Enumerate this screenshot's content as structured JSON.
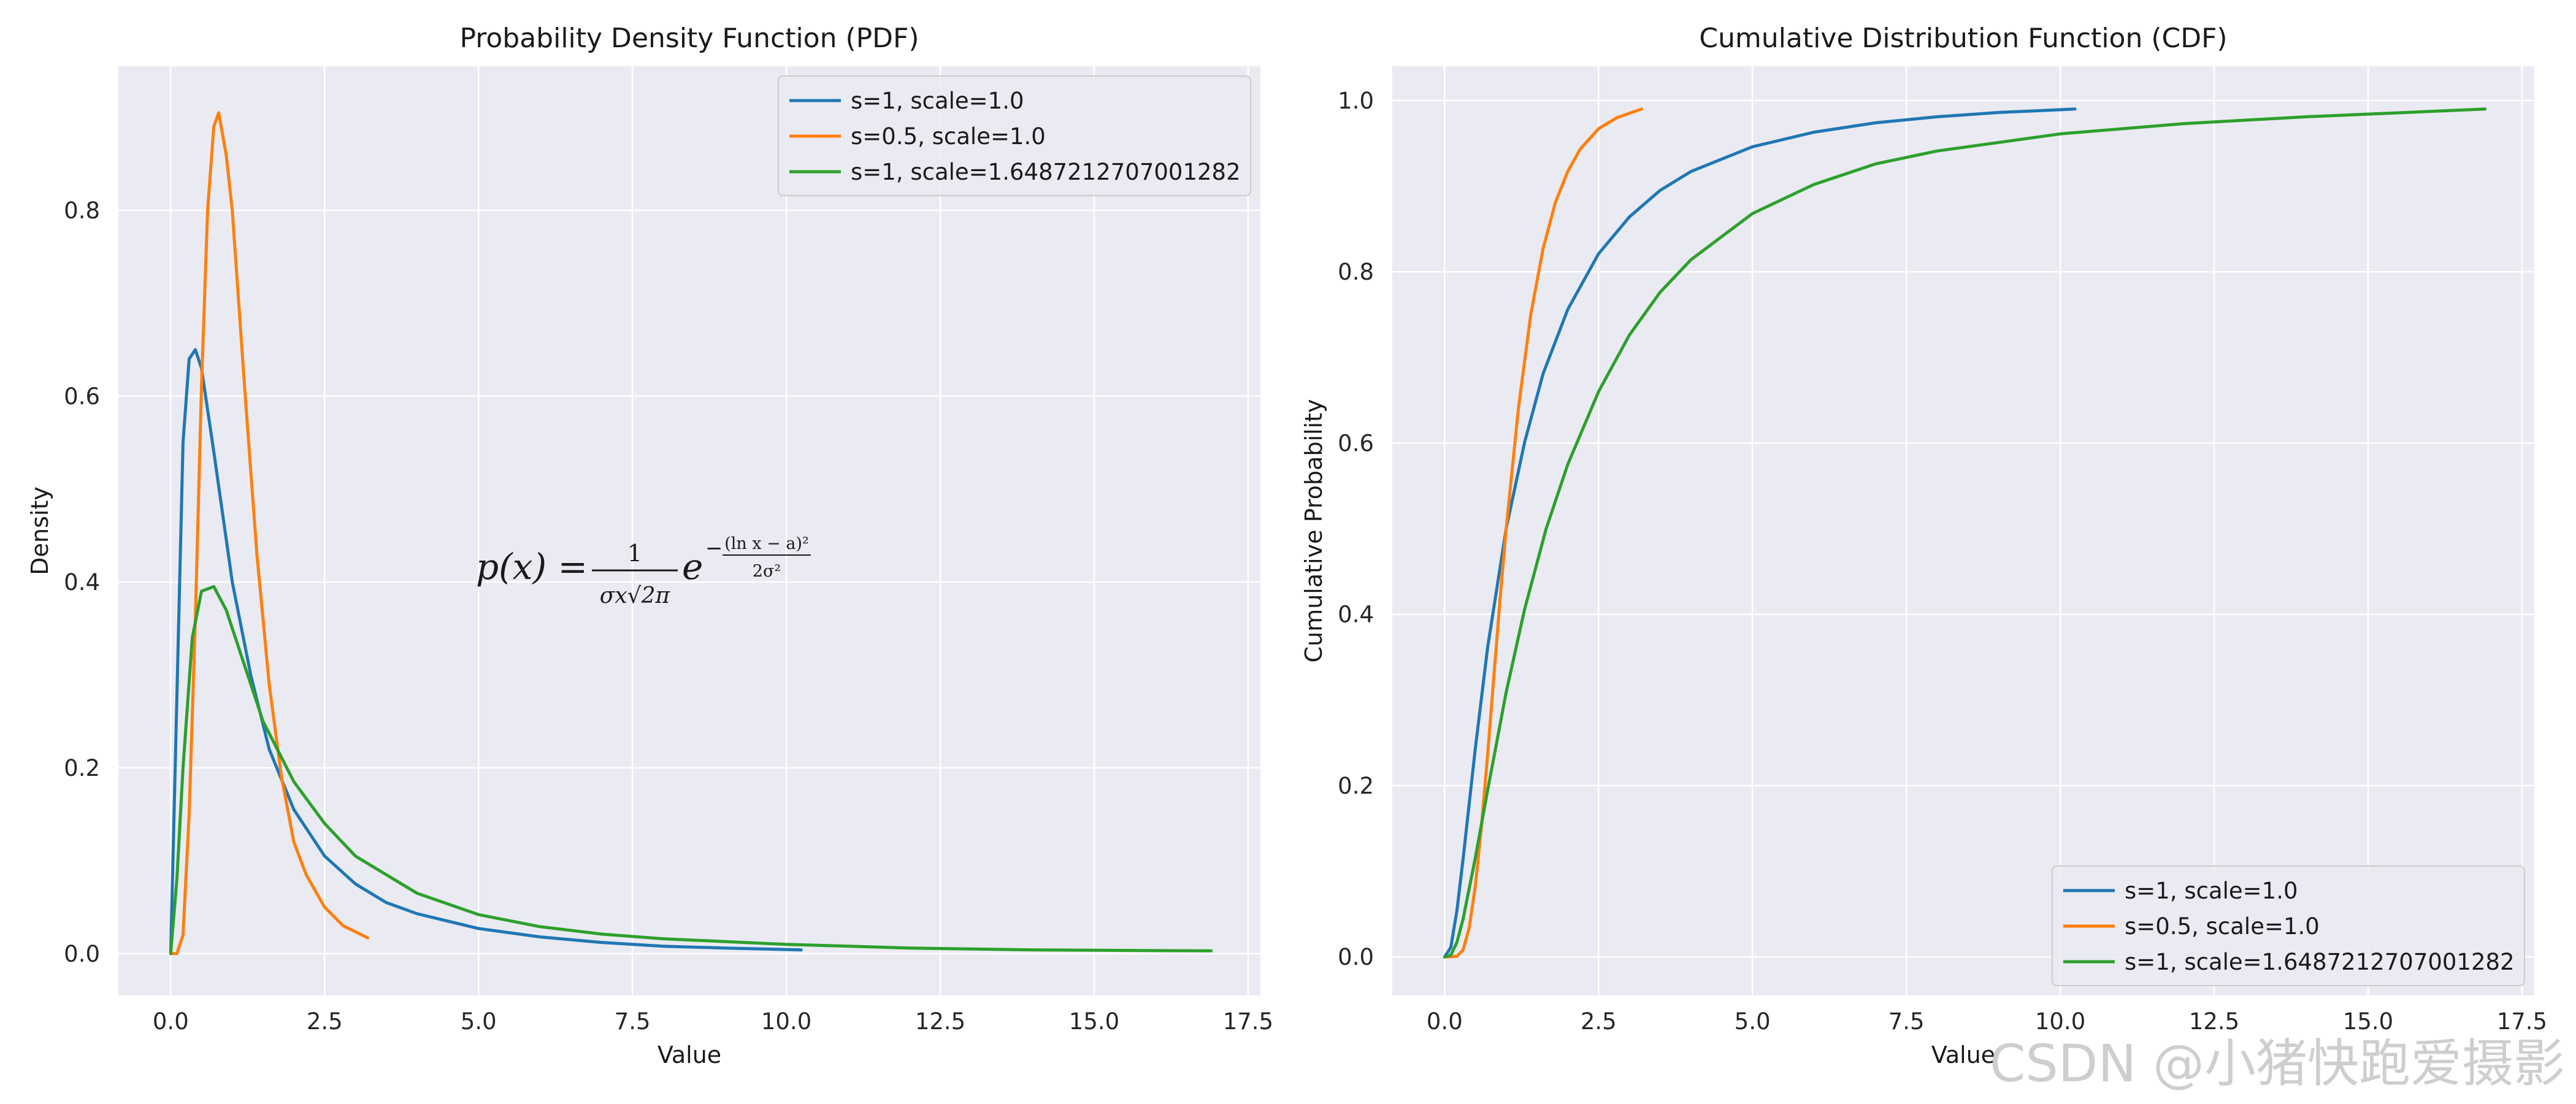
{
  "watermark": "CSDN @小猪快跑爱摄影",
  "formula": {
    "lhs": "p(x) = ",
    "num": "1",
    "den": "σx√2π",
    "base": "e",
    "exp_sign": "−",
    "exp_num": "(ln x − a)²",
    "exp_den": "2σ²"
  },
  "colors": {
    "blue": "#1f77b4",
    "orange": "#ff7f0e",
    "green": "#2ca02c",
    "plot_bg": "#eaeaf2",
    "grid": "#ffffff"
  },
  "chart_data": [
    {
      "type": "line",
      "title": "Probability Density Function (PDF)",
      "xlabel": "Value",
      "ylabel": "Density",
      "xlim": [
        -0.85,
        17.7
      ],
      "ylim": [
        -0.045,
        0.955
      ],
      "xticks": [
        0.0,
        2.5,
        5.0,
        7.5,
        10.0,
        12.5,
        15.0,
        17.5
      ],
      "xtick_labels": [
        "0.0",
        "2.5",
        "5.0",
        "7.5",
        "10.0",
        "12.5",
        "15.0",
        "17.5"
      ],
      "yticks": [
        0.0,
        0.2,
        0.4,
        0.6,
        0.8
      ],
      "ytick_labels": [
        "0.0",
        "0.2",
        "0.4",
        "0.6",
        "0.8"
      ],
      "legend_position": "top-right",
      "grid": true,
      "series": [
        {
          "name": "s=1, scale=1.0",
          "color": "#1f77b4",
          "x": [
            0.0,
            0.2,
            0.3,
            0.4,
            0.5,
            0.7,
            1.0,
            1.3,
            1.6,
            2.0,
            2.5,
            3.0,
            3.5,
            4.0,
            5.0,
            6.0,
            7.0,
            8.0,
            9.0,
            10.24
          ],
          "y": [
            0.0,
            0.55,
            0.64,
            0.65,
            0.63,
            0.54,
            0.4,
            0.3,
            0.22,
            0.155,
            0.105,
            0.075,
            0.055,
            0.043,
            0.027,
            0.018,
            0.012,
            0.008,
            0.006,
            0.004
          ]
        },
        {
          "name": "s=0.5, scale=1.0",
          "color": "#ff7f0e",
          "x": [
            0.0,
            0.1,
            0.2,
            0.3,
            0.4,
            0.5,
            0.6,
            0.7,
            0.78,
            0.9,
            1.0,
            1.2,
            1.4,
            1.6,
            1.8,
            2.0,
            2.2,
            2.5,
            2.8,
            3.2
          ],
          "y": [
            0.0,
            0.0,
            0.02,
            0.15,
            0.36,
            0.61,
            0.8,
            0.89,
            0.905,
            0.86,
            0.8,
            0.61,
            0.43,
            0.29,
            0.19,
            0.12,
            0.085,
            0.05,
            0.03,
            0.017
          ]
        },
        {
          "name": "s=1, scale=1.6487212707001282",
          "color": "#2ca02c",
          "x": [
            0.0,
            0.1,
            0.2,
            0.35,
            0.5,
            0.7,
            0.9,
            1.2,
            1.5,
            2.0,
            2.5,
            3.0,
            4.0,
            5.0,
            6.0,
            7.0,
            8.0,
            10.0,
            12.0,
            14.0,
            16.9
          ],
          "y": [
            0.0,
            0.08,
            0.2,
            0.34,
            0.39,
            0.395,
            0.37,
            0.31,
            0.25,
            0.185,
            0.14,
            0.105,
            0.065,
            0.042,
            0.029,
            0.021,
            0.016,
            0.01,
            0.006,
            0.004,
            0.003
          ]
        }
      ]
    },
    {
      "type": "line",
      "title": "Cumulative Distribution Function (CDF)",
      "xlabel": "Value",
      "ylabel": "Cumulative Probability",
      "xlim": [
        -0.85,
        17.7
      ],
      "ylim": [
        -0.045,
        1.04
      ],
      "xticks": [
        0.0,
        2.5,
        5.0,
        7.5,
        10.0,
        12.5,
        15.0,
        17.5
      ],
      "xtick_labels": [
        "0.0",
        "2.5",
        "5.0",
        "7.5",
        "10.0",
        "12.5",
        "15.0",
        "17.5"
      ],
      "yticks": [
        0.0,
        0.2,
        0.4,
        0.6,
        0.8,
        1.0
      ],
      "ytick_labels": [
        "0.0",
        "0.2",
        "0.4",
        "0.6",
        "0.8",
        "1.0"
      ],
      "legend_position": "bottom-right",
      "grid": true,
      "series": [
        {
          "name": "s=1, scale=1.0",
          "color": "#1f77b4",
          "x": [
            0.0,
            0.1,
            0.2,
            0.3,
            0.5,
            0.7,
            1.0,
            1.3,
            1.6,
            2.0,
            2.5,
            3.0,
            3.5,
            4.0,
            5.0,
            6.0,
            7.0,
            8.0,
            9.0,
            10.24
          ],
          "y": [
            0.0,
            0.011,
            0.054,
            0.114,
            0.244,
            0.362,
            0.5,
            0.601,
            0.681,
            0.756,
            0.821,
            0.864,
            0.895,
            0.917,
            0.946,
            0.963,
            0.974,
            0.981,
            0.986,
            0.99
          ]
        },
        {
          "name": "s=0.5, scale=1.0",
          "color": "#ff7f0e",
          "x": [
            0.0,
            0.2,
            0.3,
            0.4,
            0.5,
            0.6,
            0.7,
            0.8,
            0.9,
            1.0,
            1.2,
            1.4,
            1.6,
            1.8,
            2.0,
            2.2,
            2.5,
            2.8,
            3.2
          ],
          "y": [
            0.0,
            0.0006,
            0.008,
            0.034,
            0.083,
            0.153,
            0.237,
            0.327,
            0.417,
            0.5,
            0.641,
            0.75,
            0.827,
            0.881,
            0.917,
            0.943,
            0.967,
            0.98,
            0.99
          ]
        },
        {
          "name": "s=1, scale=1.6487212707001282",
          "color": "#2ca02c",
          "x": [
            0.0,
            0.1,
            0.2,
            0.3,
            0.5,
            0.7,
            1.0,
            1.3,
            1.65,
            2.0,
            2.5,
            3.0,
            3.5,
            4.0,
            5.0,
            6.0,
            7.0,
            8.0,
            10.0,
            12.0,
            14.0,
            16.9
          ],
          "y": [
            0.0,
            0.002,
            0.017,
            0.044,
            0.116,
            0.195,
            0.309,
            0.406,
            0.5,
            0.575,
            0.66,
            0.726,
            0.776,
            0.814,
            0.868,
            0.902,
            0.926,
            0.941,
            0.961,
            0.973,
            0.981,
            0.99
          ]
        }
      ]
    }
  ]
}
